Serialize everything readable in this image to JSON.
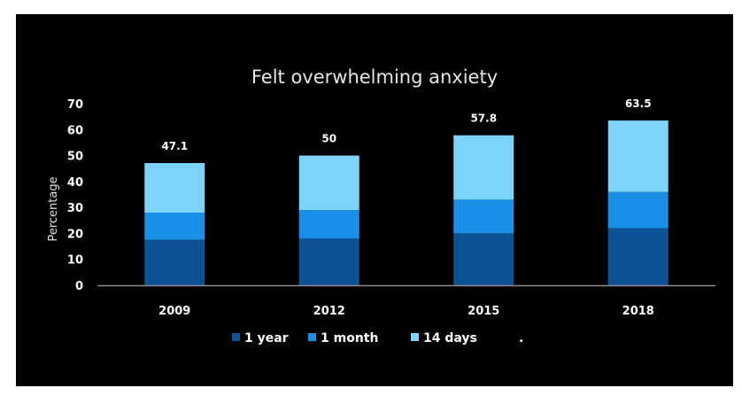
{
  "chart_data": {
    "type": "bar",
    "stacked": true,
    "title": "Felt overwhelming anxiety",
    "ylabel": "Percentage",
    "xlabel": "",
    "ylim": [
      0,
      70
    ],
    "yticks": [
      "0",
      "10",
      "20",
      "30",
      "40",
      "50",
      "60",
      "70"
    ],
    "categories": [
      "2009",
      "2012",
      "2015",
      "2018"
    ],
    "series": [
      {
        "name": "1 year",
        "color": "#0b5394",
        "values": [
          17.5,
          18,
          20,
          22
        ]
      },
      {
        "name": "1 month",
        "color": "#1a8fe6",
        "values": [
          10.5,
          11,
          13,
          14
        ]
      },
      {
        "name": "14 days",
        "color": "#7ed3fa",
        "values": [
          19.1,
          21,
          24.8,
          27.5
        ]
      }
    ],
    "totals": [
      "47.1",
      "50",
      "57.8",
      "63.5"
    ],
    "legend_position": "bottom",
    "legend_trailing_text": ".",
    "grid": false,
    "background_color": "#000000",
    "axis_color": "#8c8c8c"
  }
}
